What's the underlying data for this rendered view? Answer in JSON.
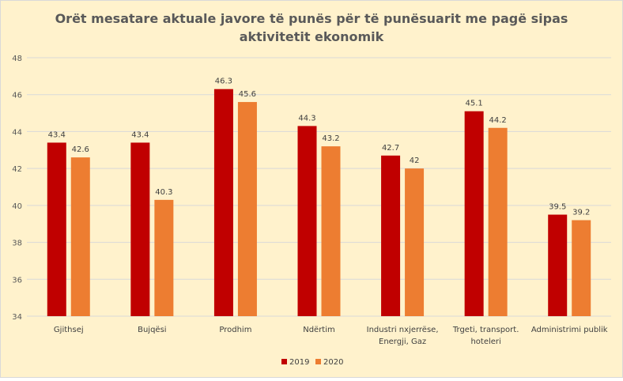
{
  "chart_data": {
    "type": "bar",
    "title": "Orët mesatare aktuale javore të punës për të punësuarit me pagë sipas aktivitetit ekonomik",
    "title_lines": [
      "Orët mesatare aktuale javore të punës për të punësuarit me pagë sipas",
      "aktivitetit ekonomik"
    ],
    "categories": [
      "Gjithsej",
      "Bujqësi",
      "Prodhim",
      "Ndërtim",
      "Industri nxjerrëse, Energji, Gaz",
      "Trgeti, transport. hoteleri",
      "Administrimi publik"
    ],
    "category_lines": [
      [
        "Gjithsej"
      ],
      [
        "Bujqësi"
      ],
      [
        "Prodhim"
      ],
      [
        "Ndërtim"
      ],
      [
        "Industri nxjerrëse,",
        "Energji, Gaz"
      ],
      [
        "Trgeti, transport.",
        "hoteleri"
      ],
      [
        "Administrimi publik"
      ]
    ],
    "series": [
      {
        "name": "2019",
        "color": "#C00000",
        "values": [
          43.4,
          43.4,
          46.3,
          44.3,
          42.7,
          45.1,
          39.5
        ]
      },
      {
        "name": "2020",
        "color": "#ED7D31",
        "values": [
          42.6,
          40.3,
          45.6,
          43.2,
          42,
          44.2,
          39.2
        ]
      }
    ],
    "ylim": [
      34,
      48
    ],
    "yticks": [
      34,
      36,
      38,
      40,
      42,
      44,
      46,
      48
    ],
    "grid": true,
    "legend": "bottom",
    "xlabel": "",
    "ylabel": ""
  }
}
